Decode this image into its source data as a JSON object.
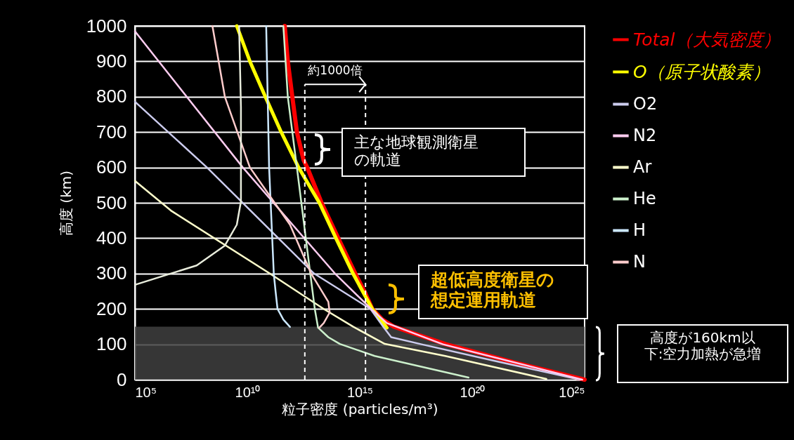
{
  "chart_data": {
    "type": "line",
    "xlabel": "粒子密度 (particles/m³)",
    "ylabel": "高度 (km)",
    "log": "x",
    "xlim": [
      100000.0,
      1e+25
    ],
    "ylim": [
      0,
      1000
    ],
    "xticks": [
      {
        "value": 100000.0,
        "label": "10⁵"
      },
      {
        "value": 10000000000.0,
        "label": "10¹⁰"
      },
      {
        "value": 1000000000000000.0,
        "label": "10¹⁵"
      },
      {
        "value": 1e+20,
        "label": "10²⁰"
      },
      {
        "value": 1e+25,
        "label": "10²⁵"
      }
    ],
    "yticks": [
      0,
      100,
      200,
      300,
      400,
      500,
      600,
      700,
      800,
      900,
      1000
    ],
    "grid": "y",
    "legend": "right",
    "series": [
      {
        "name": "Total（大気密度）",
        "color": "#ff0000",
        "x": [
          460000000000.0,
          630000000000.0,
          1000000000000.0,
          1600000000000.0,
          3200000000000.0,
          4600000000000.0,
          20000000000000.0,
          110000000000000.0,
          630000000000000.0,
          1600000000000000.0,
          3600000000000000.0,
          1e+16,
          3.2e+16,
          6.9e+18,
          6.3e+21,
          1e+25
        ],
        "values": [
          1000,
          900,
          800,
          700,
          620,
          600,
          500,
          400,
          300,
          250,
          200,
          170,
          150,
          100,
          50,
          0
        ]
      },
      {
        "name": "O（原子状酸素）",
        "color": "#ffff00",
        "x": [
          3400000000.0,
          13000000000.0,
          63000000000.0,
          320000000000.0,
          1900000000000.0,
          16000000000000.0,
          87000000000000.0,
          500000000000000.0,
          3600000000000000.0,
          1.6e+16
        ],
        "values": [
          1000,
          900,
          800,
          700,
          600,
          500,
          400,
          300,
          200,
          147
        ]
      },
      {
        "name": "O2",
        "color": "#ccccee",
        "x": [
          100000.0,
          160000000.0,
          9300000000000.0,
          3000000000000000.0,
          1.1e+16,
          2.5e+16,
          5.6e+17,
          1.6e+21,
          6.3e+24
        ],
        "values": [
          786,
          600,
          300,
          200,
          150,
          120,
          100,
          50,
          0
        ]
      },
      {
        "name": "N2",
        "color": "#ffccf0",
        "x": [
          100000.0,
          6300000000.0,
          79000000000000.0,
          3200000000000000.0,
          1.6e+16,
          5e+18,
          7.9e+24
        ],
        "values": [
          985,
          600,
          300,
          200,
          160,
          100,
          0
        ]
      },
      {
        "name": "Ar",
        "color": "#ffffcc",
        "x": [
          100000.0,
          4000000.0,
          100000000000.0,
          25000000000000.0,
          500000000000000.0,
          1.3e+16,
          6.3e+18,
          2e+23
        ],
        "values": [
          562,
          478,
          300,
          200,
          150,
          101,
          67,
          2
        ]
      },
      {
        "name": "He",
        "color": "#ccf0cc",
        "x": [
          400000000000.0,
          630000000000.0,
          1600000000000.0,
          6300000000000.0,
          10000000000000.0,
          14000000000000.0,
          40000000000000.0,
          130000000000000.0,
          4600000000000000.0,
          6.9e+19
        ],
        "values": [
          1000,
          800,
          600,
          300,
          200,
          147,
          120,
          101,
          67,
          6
        ]
      },
      {
        "name": "H",
        "color": "#cce8ff",
        "x": [
          69000000000.0,
          93000000000.0,
          150000000000.0,
          180000000000.0,
          220000000000.0,
          400000000000.0,
          790000000000.0
        ],
        "values": [
          1000,
          600,
          300,
          250,
          200,
          170,
          149
        ]
      },
      {
        "name": "N",
        "color": "#ffcccc",
        "x": [
          280000000.0,
          1000000000.0,
          13000000000.0,
          790000000000.0,
          6900000000000.0,
          40000000000000.0,
          46000000000000.0,
          25000000000000.0,
          16000000000000.0
        ],
        "values": [
          1000,
          800,
          600,
          438,
          300,
          220,
          190,
          160,
          147
        ]
      },
      {
        "color": "#e8ecdc",
        "x": [
          100000.0,
          56000000.0,
          1000000000.0,
          3400000000.0,
          5200000000.0,
          5200000000.0,
          4300000000.0
        ],
        "values": [
          268,
          323,
          379,
          438,
          504,
          770,
          1000
        ]
      }
    ],
    "ref_lines": [
      {
        "axis": "x",
        "value": 3600000000000.0,
        "color": "#ffffff",
        "line_style": "dashed"
      },
      {
        "axis": "x",
        "value": 1800000000000000.0,
        "color": "#ffffff",
        "line_style": "dashed"
      }
    ],
    "bands": [
      {
        "axis": "y",
        "from": 0,
        "to": 150,
        "color": "#404040"
      }
    ],
    "annotations": [
      "約1000倍",
      "主な地球観測衛星の軌道",
      "超低高度衛星の想定運用軌道",
      "高度が160km以下:空力加熱が急増"
    ]
  }
}
